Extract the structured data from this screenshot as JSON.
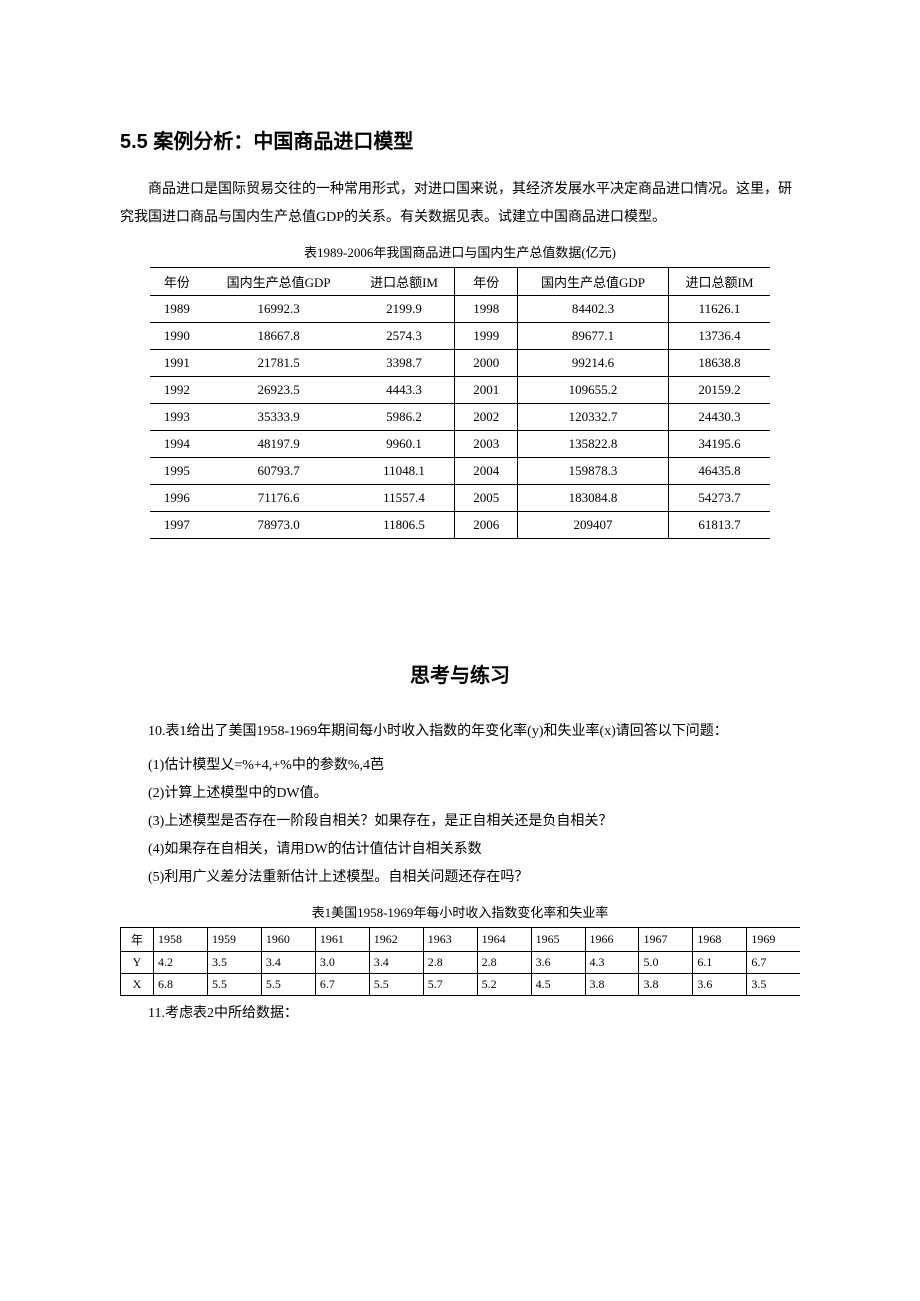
{
  "heading1": "5.5 案例分析：中国商品进口模型",
  "intro_p": "商品进口是国际贸易交往的一种常用形式，对进口国来说，其经济发展水平决定商品进口情况。这里，研究我国进口商品与国内生产总值GDP的关系。有关数据见表。试建立中国商品进口模型。",
  "table1": {
    "caption": "表1989-2006年我国商品进口与国内生产总值数据(亿元)",
    "headers": [
      "年份",
      "国内生产总值GDP",
      "进口总额IM",
      "年份",
      "国内生产总值GDP",
      "进口总额IM"
    ],
    "rows": [
      [
        "1989",
        "16992.3",
        "2199.9",
        "1998",
        "84402.3",
        "11626.1"
      ],
      [
        "1990",
        "18667.8",
        "2574.3",
        "1999",
        "89677.1",
        "13736.4"
      ],
      [
        "1991",
        "21781.5",
        "3398.7",
        "2000",
        "99214.6",
        "18638.8"
      ],
      [
        "1992",
        "26923.5",
        "4443.3",
        "2001",
        "109655.2",
        "20159.2"
      ],
      [
        "1993",
        "35333.9",
        "5986.2",
        "2002",
        "120332.7",
        "24430.3"
      ],
      [
        "1994",
        "48197.9",
        "9960.1",
        "2003",
        "135822.8",
        "34195.6"
      ],
      [
        "1995",
        "60793.7",
        "11048.1",
        "2004",
        "159878.3",
        "46435.8"
      ],
      [
        "1996",
        "71176.6",
        "11557.4",
        "2005",
        "183084.8",
        "54273.7"
      ],
      [
        "1997",
        "78973.0",
        "11806.5",
        "2006",
        "209407",
        "61813.7"
      ]
    ]
  },
  "section2": "思考与练习",
  "q10_lead": "10.表1给出了美国1958-1969年期间每小时收入指数的年变化率(y)和失业率(x)请回答以下问题：",
  "q10_1": "(1)估计模型乂=%+4,+%中的参数%,4芭",
  "q10_2": "(2)计算上述模型中的DW值。",
  "q10_3": "(3)上述模型是否存在一阶段自相关？如果存在，是正自相关还是负自相关？",
  "q10_4": "(4)如果存在自相关，请用DW的估计值估计自相关系数",
  "q10_5": "(5)利用广义差分法重新估计上述模型。自相关问题还存在吗？",
  "table2": {
    "caption": "表1美国1958-1969年每小时收入指数变化率和失业率",
    "row_labels": [
      "年",
      "Y",
      "X"
    ],
    "years": [
      "1958",
      "1959",
      "1960",
      "1961",
      "1962",
      "1963",
      "1964",
      "1965",
      "1966",
      "1967",
      "1968",
      "1969"
    ],
    "y": [
      "4.2",
      "3.5",
      "3.4",
      "3.0",
      "3.4",
      "2.8",
      "2.8",
      "3.6",
      "4.3",
      "5.0",
      "6.1",
      "6.7"
    ],
    "x": [
      "6.8",
      "5.5",
      "5.5",
      "6.7",
      "5.5",
      "5.7",
      "5.2",
      "4.5",
      "3.8",
      "3.8",
      "3.6",
      "3.5"
    ]
  },
  "q11": "11.考虑表2中所给数据："
}
